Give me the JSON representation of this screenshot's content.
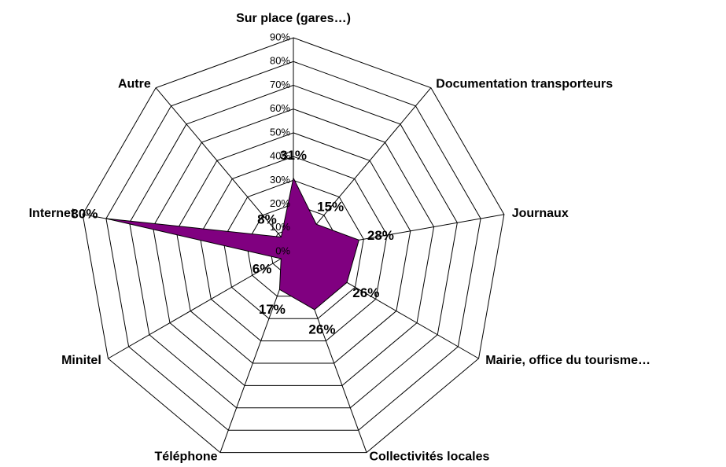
{
  "chart_data": {
    "type": "radar",
    "categories": [
      "Sur place (gares…)",
      "Documentation transporteurs",
      "Journaux",
      "Mairie, office du tourisme…",
      "Collectivités locales",
      "Téléphone",
      "Minitel",
      "Internet",
      "Autre"
    ],
    "values": [
      31,
      15,
      28,
      26,
      26,
      17,
      6,
      80,
      8
    ],
    "value_labels": [
      "31%",
      "15%",
      "28%",
      "26%",
      "26%",
      "17%",
      "6%",
      "80%",
      "8%"
    ],
    "color": "#800080",
    "ylim": [
      0,
      90
    ],
    "yticks": [
      {
        "value": 0,
        "label": "0%"
      },
      {
        "value": 10,
        "label": "10%"
      },
      {
        "value": 20,
        "label": "20%"
      },
      {
        "value": 30,
        "label": "30%"
      },
      {
        "value": 40,
        "label": "40%"
      },
      {
        "value": 50,
        "label": "50%"
      },
      {
        "value": 60,
        "label": "60%"
      },
      {
        "value": 70,
        "label": "70%"
      },
      {
        "value": 80,
        "label": "80%"
      },
      {
        "value": 90,
        "label": "90%"
      }
    ],
    "grid": true
  }
}
